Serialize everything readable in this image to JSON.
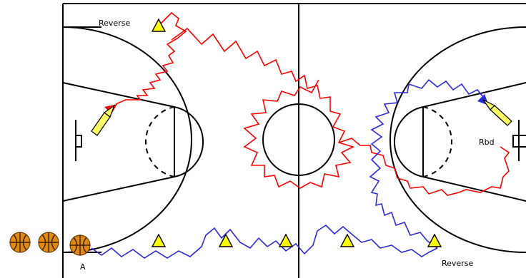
{
  "labels": {
    "reverse_top": "Reverse",
    "reverse_bottom": "Reverse",
    "rebounder": "Rbd",
    "player_a": "A"
  },
  "colors": {
    "court": "#000000",
    "red_path": "#ff0000",
    "blue_path": "#2b2bd9",
    "cone": "#ffff00",
    "ball": "#e08a12"
  },
  "icons": [
    "cone-icon",
    "basketball-icon",
    "pass-arrow-icon"
  ]
}
